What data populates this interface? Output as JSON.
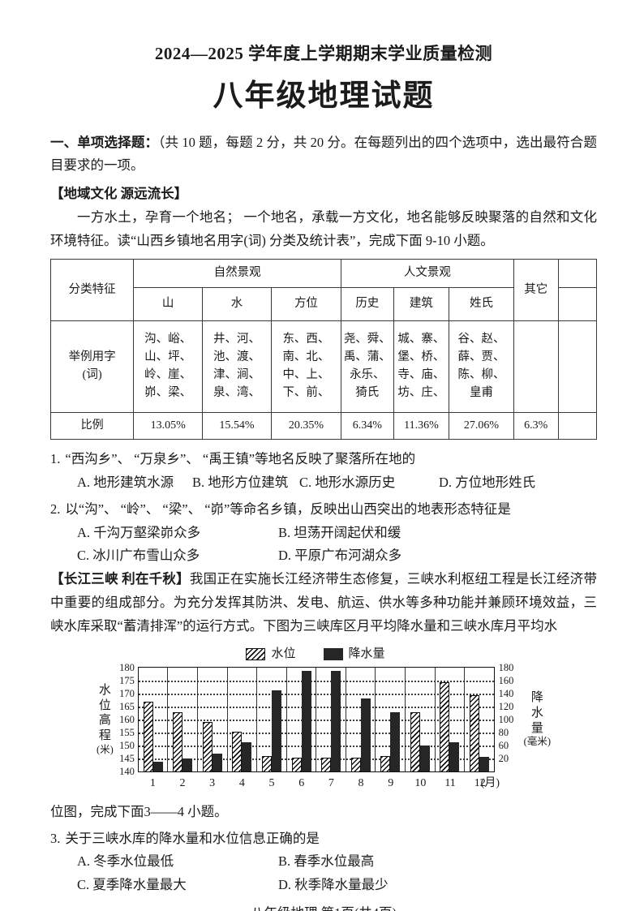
{
  "page": {
    "header": {
      "session_title": "2024—2025 学年度上学期期末学业质量检测",
      "subject_title": "八年级地理试题"
    },
    "section1": {
      "lead": "一、单项选择题：",
      "instructions": "（共 10 题，每题 2 分，共 20 分。在每题列出的四个选项中，选出最符合题目要求的一项。"
    },
    "block1": {
      "tag": "【地域文化 源远流长】",
      "paragraph": "一方水土，孕育一个地名； 一个地名，承载一方文化，地名能够反映聚落的自然和文化环境特征。读“山西乡镇地名用字(词) 分类及统计表”，完成下面 9-10 小题。"
    },
    "table": {
      "header": {
        "col1": "分类特征",
        "natural": "自然景观",
        "human": "人文景观",
        "other": "其它",
        "sub": [
          "山",
          "水",
          "方位",
          "历史",
          "建筑",
          "姓氏"
        ]
      },
      "example_label": "举例用字\n(词)",
      "example": [
        "沟、峪、\n山、坪、\n岭、崖、\n峁、梁、",
        "井、河、\n池、渡、\n津、涧、\n泉、湾、",
        "东、西、\n南、北、\n中、上、\n下、前、",
        "尧、舜、\n禹、蒲、\n永乐、\n猗氏",
        "城、寨、\n堡、桥、\n寺、庙、\n坊、庄、",
        "谷、赵、\n薛、贾、\n陈、柳、\n皇甫"
      ],
      "ratio_label": "比例",
      "ratio": [
        "13.05%",
        "15.54%",
        "20.35%",
        "6.34%",
        "11.36%",
        "27.06%",
        "6.3%",
        ""
      ]
    },
    "q1": {
      "number": "1.",
      "text": "“西沟乡”、 “万泉乡”、 “禹王镇”等地名反映了聚落所在地的",
      "options": [
        "A.  地形建筑水源",
        "B.  地形方位建筑",
        "C.  地形水源历史",
        "D.  方位地形姓氏"
      ]
    },
    "q2": {
      "number": "2.",
      "text": "以“沟”、 “岭”、 “梁”、 “峁”等命名乡镇，反映出山西突出的地表形态特征是",
      "options": [
        "A.  千沟万壑梁峁众多",
        "B.  坦荡开阔起伏和缓",
        "C.  冰川广布雪山众多",
        "D.  平原广布河湖众多"
      ]
    },
    "block2": {
      "tag": "【长江三峡 利在千秋】",
      "paragraph": "我国正在实施长江经济带生态修复，三峡水利枢纽工程是长江经济带中重要的组成部分。为充分发挥其防洪、发电、航运、供水等多种功能并兼顾环境效益，三峡水库采取“蓄清排浑”的运行方式。下图为三峡库区月平均降水量和三峡水库月平均水"
    },
    "continuation": "位图，完成下面3——4 小题。",
    "q3": {
      "number": "3.",
      "text": "关于三峡水库的降水量和水位信息正确的是",
      "options": [
        "A.  冬季水位最低",
        "B.  春季水位最高",
        "C.  夏季降水量最大",
        "D.  秋季降水量最少"
      ]
    },
    "footer": "八年级地理 第1页(共4页)"
  },
  "chart_data": {
    "type": "bar",
    "title": "三峡库区月平均降水量和三峡水库月平均水位图",
    "categories": [
      "1",
      "2",
      "3",
      "4",
      "5",
      "6",
      "7",
      "8",
      "9",
      "10",
      "11",
      "12"
    ],
    "x_unit": "(月)",
    "legend_position": "top",
    "grid": "dotted-horizontal",
    "series": [
      {
        "name": "水位",
        "style": "hatched",
        "axis": "left",
        "unit": "米",
        "values": [
          167,
          163,
          159,
          155.5,
          146,
          145.5,
          145.5,
          145.5,
          146,
          163,
          174.5,
          169.5
        ]
      },
      {
        "name": "降水量",
        "style": "solid",
        "axis": "right",
        "unit": "毫米",
        "values": [
          15,
          20,
          35,
          65,
          145,
          175,
          175,
          133,
          112,
          60,
          65,
          25
        ]
      }
    ],
    "left_axis": {
      "label": "水位高程",
      "unit": "(米)",
      "min": 140,
      "max": 180,
      "ticks": [
        180,
        175,
        170,
        165,
        160,
        155,
        150,
        145,
        140
      ]
    },
    "right_axis": {
      "label": "降水量",
      "unit": "(毫米)",
      "ticks": [
        180,
        160,
        140,
        120,
        100,
        80,
        60,
        20
      ]
    }
  }
}
